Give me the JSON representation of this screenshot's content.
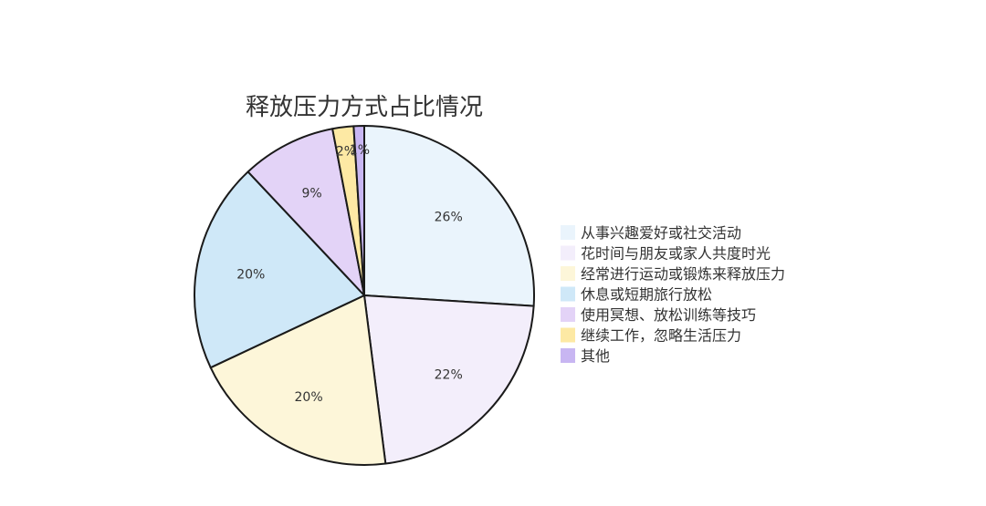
{
  "chart_data": {
    "type": "pie",
    "title": "释放压力方式占比情况",
    "categories": [
      "从事兴趣爱好或社交活动",
      "花时间与朋友或家人共度时光",
      "经常进行运动或锻炼来释放压力",
      "休息或短期旅行放松",
      "使用冥想、放松训练等技巧",
      "继续工作，忽略生活压力",
      "其他"
    ],
    "values": [
      26,
      22,
      20,
      20,
      9,
      2,
      1
    ],
    "labels": [
      "26%",
      "22%",
      "20%",
      "20%",
      "9%",
      "2%",
      "1%"
    ],
    "colors": [
      "#eaf4fc",
      "#f3eefb",
      "#fdf6d9",
      "#cfe8f8",
      "#e3d3f7",
      "#fde9a4",
      "#c8b6f2"
    ],
    "legend_position": "right",
    "outline_color": "#1a1a1a"
  }
}
